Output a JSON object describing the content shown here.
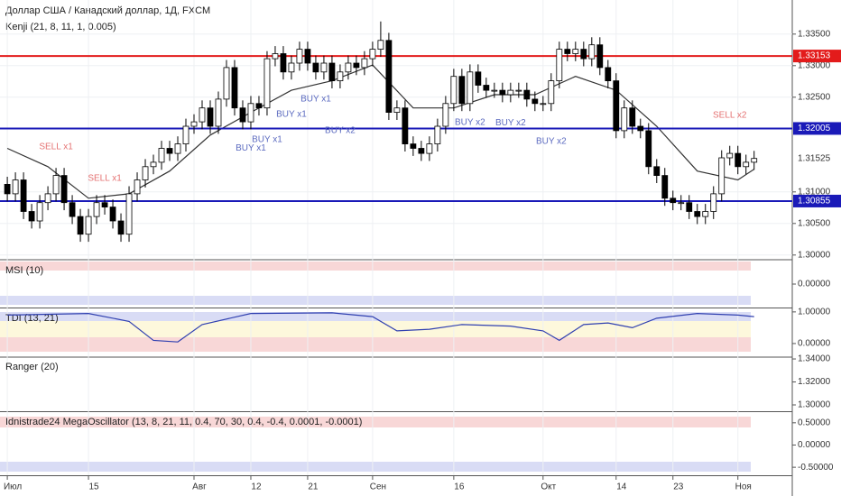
{
  "header": {
    "title": "Доллар США / Канадский доллар, 1Д, FXCM",
    "indicator": "Kenji (21, 8, 11, 1, 0.005)"
  },
  "chart_data": [
    {
      "type": "candlestick",
      "xlim": [
        -0.9,
        96.7
      ],
      "ylim": [
        1.2994,
        1.3404
      ],
      "xticks": [
        {
          "value": 0,
          "label": "Июл"
        },
        {
          "value": 10,
          "label": "15"
        },
        {
          "value": 23,
          "label": "Авг"
        },
        {
          "value": 30,
          "label": "12"
        },
        {
          "value": 37,
          "label": "21"
        },
        {
          "value": 45,
          "label": "Сен"
        },
        {
          "value": 55,
          "label": "16"
        },
        {
          "value": 66,
          "label": "Окт"
        },
        {
          "value": 75,
          "label": "14"
        },
        {
          "value": 82,
          "label": "23"
        },
        {
          "value": 90,
          "label": "Ноя"
        }
      ],
      "yticks": [
        {
          "value": 1.335,
          "label": "1.33500"
        },
        {
          "value": 1.33,
          "label": "1.33000"
        },
        {
          "value": 1.325,
          "label": "1.32500"
        },
        {
          "value": 1.31,
          "label": "1.31000"
        },
        {
          "value": 1.305,
          "label": "1.30500"
        },
        {
          "value": 1.3,
          "label": "1.30000"
        }
      ],
      "grid": true,
      "open": [
        1.3112,
        1.3097,
        1.3119,
        1.3069,
        1.3054,
        1.3083,
        1.3097,
        1.3126,
        1.3083,
        1.3061,
        1.3033,
        1.3061,
        1.3083,
        1.3076,
        1.3054,
        1.3033,
        1.3097,
        1.3119,
        1.314,
        1.3147,
        1.3169,
        1.3161,
        1.3176,
        1.3204,
        1.3211,
        1.3233,
        1.3204,
        1.3247,
        1.3297,
        1.3233,
        1.3211,
        1.324,
        1.3233,
        1.3311,
        1.3319,
        1.329,
        1.3304,
        1.3326,
        1.3304,
        1.329,
        1.3304,
        1.3276,
        1.329,
        1.3304,
        1.3297,
        1.3311,
        1.3326,
        1.334,
        1.3226,
        1.3233,
        1.3176,
        1.3169,
        1.3161,
        1.3176,
        1.3204,
        1.324,
        1.3283,
        1.324,
        1.329,
        1.3269,
        1.3261,
        1.3261,
        1.3254,
        1.3261,
        1.3261,
        1.3247,
        1.324,
        1.324,
        1.3276,
        1.3326,
        1.3319,
        1.3326,
        1.3311,
        1.3333,
        1.3297,
        1.3276,
        1.3197,
        1.3233,
        1.3204,
        1.3197,
        1.314,
        1.3126,
        1.309,
        1.3083,
        1.3083,
        1.3069,
        1.3061,
        1.3069,
        1.3097,
        1.3154,
        1.3161,
        1.314,
        1.3147
      ],
      "high": [
        1.3124,
        1.3131,
        1.3131,
        1.3081,
        1.3095,
        1.3109,
        1.3138,
        1.3138,
        1.3095,
        1.3073,
        1.3073,
        1.3095,
        1.3095,
        1.3088,
        1.3066,
        1.3109,
        1.3131,
        1.3152,
        1.3159,
        1.3181,
        1.3181,
        1.3188,
        1.3216,
        1.3223,
        1.3245,
        1.3245,
        1.3259,
        1.3309,
        1.3309,
        1.3245,
        1.3252,
        1.3252,
        1.3323,
        1.3331,
        1.3331,
        1.3316,
        1.3338,
        1.3338,
        1.3316,
        1.3316,
        1.3316,
        1.3302,
        1.3316,
        1.3316,
        1.3323,
        1.3338,
        1.337,
        1.3352,
        1.3245,
        1.3245,
        1.3188,
        1.3181,
        1.3188,
        1.3216,
        1.3252,
        1.3295,
        1.3295,
        1.3302,
        1.3302,
        1.3281,
        1.3273,
        1.3273,
        1.3273,
        1.3273,
        1.3273,
        1.3259,
        1.3252,
        1.3288,
        1.3338,
        1.3338,
        1.3338,
        1.3338,
        1.3345,
        1.3345,
        1.3309,
        1.3288,
        1.3245,
        1.3245,
        1.3216,
        1.3209,
        1.3152,
        1.3138,
        1.3102,
        1.3095,
        1.3095,
        1.3081,
        1.3081,
        1.3109,
        1.3166,
        1.3173,
        1.3173,
        1.3159,
        1.3165
      ],
      "low": [
        1.3085,
        1.3085,
        1.3057,
        1.3042,
        1.3042,
        1.3071,
        1.3085,
        1.3071,
        1.3049,
        1.3021,
        1.3021,
        1.3049,
        1.3064,
        1.3042,
        1.3021,
        1.3021,
        1.3085,
        1.3107,
        1.3128,
        1.3135,
        1.3149,
        1.3149,
        1.3164,
        1.3192,
        1.3199,
        1.3192,
        1.3192,
        1.3235,
        1.3221,
        1.3199,
        1.3199,
        1.3221,
        1.3221,
        1.3299,
        1.3278,
        1.3278,
        1.3292,
        1.3292,
        1.3278,
        1.3278,
        1.3264,
        1.3264,
        1.3278,
        1.3285,
        1.3285,
        1.3299,
        1.3314,
        1.3214,
        1.3214,
        1.3164,
        1.3157,
        1.3149,
        1.3149,
        1.3164,
        1.3192,
        1.3228,
        1.3228,
        1.3228,
        1.3257,
        1.3249,
        1.3249,
        1.3242,
        1.3242,
        1.3249,
        1.3235,
        1.3228,
        1.3228,
        1.3228,
        1.3264,
        1.3307,
        1.3307,
        1.3299,
        1.3299,
        1.3285,
        1.3264,
        1.3185,
        1.3185,
        1.3192,
        1.3185,
        1.3128,
        1.3114,
        1.3078,
        1.3071,
        1.3071,
        1.3057,
        1.3049,
        1.3049,
        1.3057,
        1.3085,
        1.3142,
        1.3128,
        1.3128,
        1.3135
      ],
      "close": [
        1.3097,
        1.3119,
        1.3069,
        1.3054,
        1.3083,
        1.3097,
        1.3126,
        1.3083,
        1.3061,
        1.3033,
        1.3061,
        1.3083,
        1.3076,
        1.3054,
        1.3033,
        1.3097,
        1.3119,
        1.314,
        1.3147,
        1.3169,
        1.3161,
        1.3176,
        1.3204,
        1.3211,
        1.3233,
        1.3204,
        1.3247,
        1.3297,
        1.3233,
        1.3211,
        1.324,
        1.3233,
        1.3311,
        1.3319,
        1.329,
        1.3304,
        1.3326,
        1.3304,
        1.329,
        1.3304,
        1.3276,
        1.329,
        1.3304,
        1.3297,
        1.3311,
        1.3326,
        1.334,
        1.3226,
        1.3233,
        1.3176,
        1.3169,
        1.3161,
        1.3176,
        1.3204,
        1.324,
        1.3283,
        1.324,
        1.329,
        1.3269,
        1.3261,
        1.3261,
        1.3254,
        1.3261,
        1.3261,
        1.3247,
        1.324,
        1.324,
        1.3276,
        1.3326,
        1.3319,
        1.3326,
        1.3311,
        1.3333,
        1.3297,
        1.3276,
        1.3197,
        1.3233,
        1.3204,
        1.3197,
        1.314,
        1.3126,
        1.309,
        1.3083,
        1.3083,
        1.3069,
        1.3061,
        1.3069,
        1.3097,
        1.3154,
        1.3161,
        1.314,
        1.3147,
        1.3153
      ],
      "up_color": "#ffffff",
      "down_color": "#000000",
      "baseline": {
        "color": "#333333",
        "x": [
          0,
          5,
          10,
          15,
          20,
          25,
          30,
          35,
          40,
          45,
          50,
          55,
          60,
          65,
          70,
          75,
          80,
          85,
          90,
          92
        ],
        "values": [
          1.3169,
          1.314,
          1.309,
          1.3097,
          1.3133,
          1.319,
          1.3226,
          1.3261,
          1.3276,
          1.3301,
          1.3233,
          1.3233,
          1.3254,
          1.3254,
          1.3283,
          1.3261,
          1.3204,
          1.3133,
          1.3119,
          1.3136
        ]
      },
      "levels": [
        {
          "value": 1.33153,
          "color": "#e31b1b"
        },
        {
          "value": 1.32005,
          "color": "#1a1ab8"
        },
        {
          "value": 1.30855,
          "color": "#1a1ab8"
        }
      ],
      "last_price": 1.31525,
      "annotations": [
        {
          "text": "SELL x1",
          "x": 6,
          "y": 1.3171,
          "color": "#e57373"
        },
        {
          "text": "SELL x1",
          "x": 12,
          "y": 1.3121,
          "color": "#e57373"
        },
        {
          "text": "BUY x1",
          "x": 30,
          "y": 1.3169,
          "color": "#5c6bc0"
        },
        {
          "text": "BUY x1",
          "x": 32,
          "y": 1.3183,
          "color": "#5c6bc0"
        },
        {
          "text": "BUY x1",
          "x": 35,
          "y": 1.3223,
          "color": "#5c6bc0"
        },
        {
          "text": "BUY x1",
          "x": 38,
          "y": 1.3247,
          "color": "#5c6bc0"
        },
        {
          "text": "BUY x2",
          "x": 41,
          "y": 1.3197,
          "color": "#5c6bc0"
        },
        {
          "text": "BUY x2",
          "x": 57,
          "y": 1.321,
          "color": "#5c6bc0"
        },
        {
          "text": "BUY x2",
          "x": 62,
          "y": 1.3209,
          "color": "#5c6bc0"
        },
        {
          "text": "BUY x2",
          "x": 67,
          "y": 1.318,
          "color": "#5c6bc0"
        },
        {
          "text": "SELL x2",
          "x": 89,
          "y": 1.3221,
          "color": "#e57373"
        }
      ]
    },
    {
      "type": "panel",
      "title": "MSI (10)",
      "xlim": [
        -0.9,
        96.7
      ],
      "ylim": [
        -1.2,
        1.2
      ],
      "yticks": [
        {
          "value": 0,
          "label": "0.00000"
        }
      ]
    },
    {
      "type": "line",
      "title": "TDI (13, 21)",
      "xlim": [
        -0.9,
        96.7
      ],
      "ylim": [
        -0.43,
        1.11
      ],
      "yticks": [
        {
          "value": 1,
          "label": "1.00000"
        },
        {
          "value": 0,
          "label": "0.00000"
        }
      ],
      "series": [
        {
          "color": "#3040b0",
          "x": [
            0,
            10,
            15,
            18,
            21,
            24,
            30,
            40,
            45,
            48,
            52,
            56,
            62,
            66,
            68,
            71,
            74,
            77,
            80,
            85,
            90,
            92
          ],
          "values": [
            0.9,
            0.95,
            0.7,
            0.1,
            0.05,
            0.6,
            0.95,
            0.97,
            0.85,
            0.4,
            0.45,
            0.6,
            0.55,
            0.4,
            0.1,
            0.6,
            0.65,
            0.5,
            0.8,
            0.95,
            0.9,
            0.85
          ]
        }
      ]
    },
    {
      "type": "panel",
      "title": "Ranger (20)",
      "xlim": [
        -0.9,
        96.7
      ],
      "ylim": [
        1.2945,
        1.3416
      ],
      "yticks": [
        {
          "value": 1.34,
          "label": "1.34000"
        },
        {
          "value": 1.32,
          "label": "1.32000"
        },
        {
          "value": 1.3,
          "label": "1.30000"
        }
      ]
    },
    {
      "type": "panel",
      "title": "Idnistrade24 MegaOscillator (13, 8, 21, 11, 0.4, 70, 30, 0.4, -0.4, 0.0001, -0.0001)",
      "xlim": [
        -0.9,
        96.7
      ],
      "ylim": [
        -0.68,
        0.74
      ],
      "yticks": [
        {
          "value": 0.5,
          "label": "0.50000"
        },
        {
          "value": 0,
          "label": "0.00000"
        },
        {
          "value": -0.5,
          "label": "-0.50000"
        }
      ]
    }
  ]
}
